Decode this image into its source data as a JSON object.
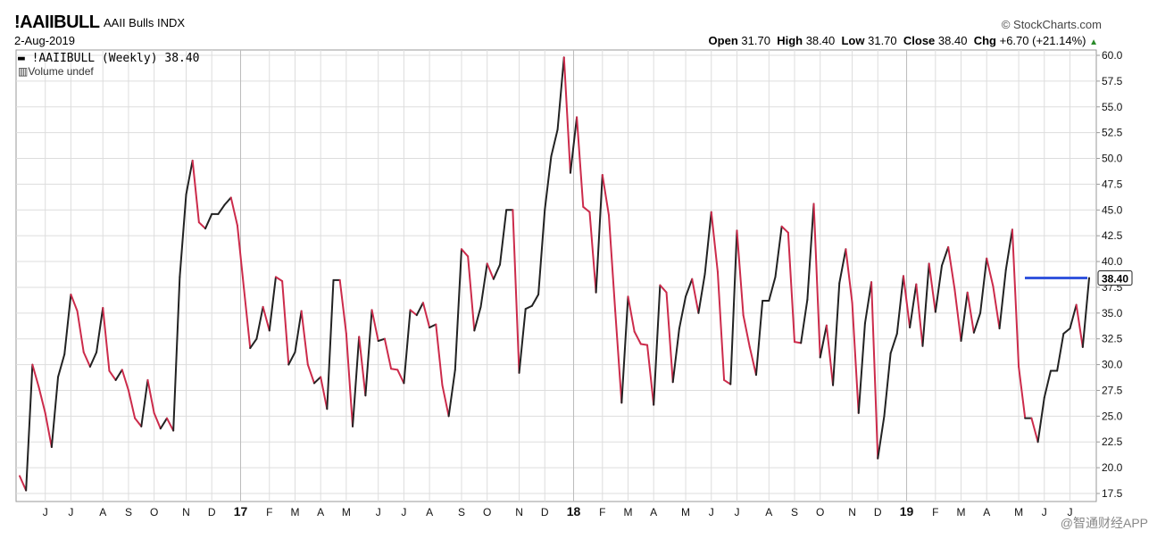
{
  "header": {
    "symbol": "!AAIIBULL",
    "name": "AAII Bulls",
    "exchange": "INDX",
    "date": "2-Aug-2019",
    "brand": "© StockCharts.com",
    "open_label": "Open",
    "open": "31.70",
    "high_label": "High",
    "high": "38.40",
    "low_label": "Low",
    "low": "31.70",
    "close_label": "Close",
    "close": "38.40",
    "chg_label": "Chg",
    "chg": "+6.70 (+21.14%)"
  },
  "legend": {
    "series_label": "!AAIIBULL (Weekly) 38.40",
    "volume_label": "Volume undef"
  },
  "watermark": "@智通财经APP",
  "colors": {
    "up": "#222222",
    "down": "#cc2b4b",
    "hline": "#3355dd",
    "grid": "#dddddd"
  },
  "chart_data": {
    "type": "line",
    "title": "!AAIIBULL (Weekly)",
    "ylim": [
      17.5,
      60.0
    ],
    "y_ticks": [
      "17.5",
      "20.0",
      "22.5",
      "25.0",
      "27.5",
      "30.0",
      "32.5",
      "35.0",
      "37.5",
      "40.0",
      "42.5",
      "45.0",
      "47.5",
      "50.0",
      "52.5",
      "55.0",
      "57.5",
      "60.0"
    ],
    "x_ticks": [
      {
        "label": "J",
        "t": 4
      },
      {
        "label": "J",
        "t": 8
      },
      {
        "label": "A",
        "t": 13
      },
      {
        "label": "S",
        "t": 17
      },
      {
        "label": "O",
        "t": 21
      },
      {
        "label": "N",
        "t": 26
      },
      {
        "label": "D",
        "t": 30
      },
      {
        "label": "17",
        "t": 34.5
      },
      {
        "label": "F",
        "t": 39
      },
      {
        "label": "M",
        "t": 43
      },
      {
        "label": "A",
        "t": 47
      },
      {
        "label": "M",
        "t": 51
      },
      {
        "label": "J",
        "t": 56
      },
      {
        "label": "J",
        "t": 60
      },
      {
        "label": "A",
        "t": 64
      },
      {
        "label": "S",
        "t": 69
      },
      {
        "label": "O",
        "t": 73
      },
      {
        "label": "N",
        "t": 78
      },
      {
        "label": "D",
        "t": 82
      },
      {
        "label": "18",
        "t": 86.5
      },
      {
        "label": "F",
        "t": 91
      },
      {
        "label": "M",
        "t": 95
      },
      {
        "label": "A",
        "t": 99
      },
      {
        "label": "M",
        "t": 104
      },
      {
        "label": "J",
        "t": 108
      },
      {
        "label": "J",
        "t": 112
      },
      {
        "label": "A",
        "t": 117
      },
      {
        "label": "S",
        "t": 121
      },
      {
        "label": "O",
        "t": 125
      },
      {
        "label": "N",
        "t": 130
      },
      {
        "label": "D",
        "t": 134
      },
      {
        "label": "19",
        "t": 138.5
      },
      {
        "label": "F",
        "t": 143
      },
      {
        "label": "M",
        "t": 147
      },
      {
        "label": "A",
        "t": 151
      },
      {
        "label": "M",
        "t": 156
      },
      {
        "label": "J",
        "t": 160
      },
      {
        "label": "J",
        "t": 164
      }
    ],
    "bold_ticks": [
      "17",
      "18",
      "19"
    ],
    "values": [
      19.2,
      17.8,
      30.0,
      27.8,
      25.3,
      22.0,
      28.8,
      31.0,
      36.8,
      35.2,
      31.2,
      29.8,
      31.2,
      35.5,
      29.4,
      28.5,
      29.5,
      27.5,
      24.8,
      24.0,
      28.5,
      25.3,
      23.8,
      24.8,
      23.6,
      38.5,
      46.5,
      49.8,
      43.8,
      43.2,
      44.6,
      44.6,
      45.5,
      46.2,
      43.5,
      37.5,
      31.6,
      32.5,
      35.6,
      33.3,
      38.5,
      38.1,
      30.0,
      31.2,
      35.2,
      30.0,
      28.2,
      28.8,
      25.7,
      38.2,
      38.2,
      33.0,
      24.0,
      32.7,
      27.0,
      35.3,
      32.3,
      32.5,
      29.6,
      29.5,
      28.2,
      35.3,
      34.8,
      36.0,
      33.6,
      33.9,
      28.0,
      25.0,
      29.5,
      41.2,
      40.5,
      33.3,
      35.6,
      39.8,
      38.3,
      39.7,
      45.0,
      45.0,
      29.2,
      35.4,
      35.7,
      36.8,
      45.0,
      50.2,
      52.8,
      59.8,
      48.6,
      54.0,
      45.3,
      44.8,
      37.0,
      48.4,
      44.5,
      35.2,
      26.3,
      36.6,
      33.2,
      32.0,
      31.9,
      26.1,
      37.7,
      37.0,
      28.3,
      33.5,
      36.6,
      38.3,
      35.0,
      38.8,
      44.8,
      39.0,
      28.5,
      28.1,
      43.0,
      34.8,
      31.7,
      29.0,
      36.2,
      36.2,
      38.5,
      43.4,
      42.8,
      32.2,
      32.1,
      36.3,
      45.6,
      30.7,
      33.8,
      28.0,
      37.9,
      41.2,
      36.0,
      25.3,
      34.0,
      38.0,
      20.9,
      25.0,
      31.1,
      33.0,
      38.6,
      33.6,
      37.8,
      31.8,
      39.8,
      35.1,
      39.6,
      41.4,
      37.3,
      32.3,
      37.0,
      33.1,
      35.0,
      40.3,
      37.6,
      33.5,
      39.2,
      43.1,
      29.8,
      24.8,
      24.8,
      22.5,
      26.8,
      29.4,
      29.4,
      33.0,
      33.5,
      35.8,
      31.7,
      38.4
    ],
    "horizontal_line": 38.4,
    "last_value_label": "38.40"
  }
}
